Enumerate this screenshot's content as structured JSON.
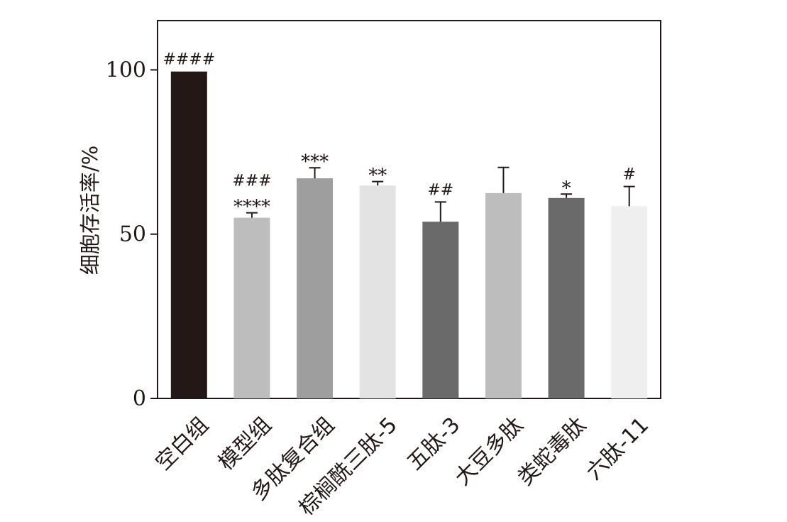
{
  "chart_data": {
    "type": "bar",
    "title": "",
    "xlabel": "",
    "ylabel": "细胞存活率/%",
    "ylim": [
      0,
      115
    ],
    "yticks": [
      0,
      50,
      100
    ],
    "grid": false,
    "legend": "none",
    "categories": [
      "空白组",
      "模型组",
      "多肽复合组",
      "棕榈酰三肽-5",
      "五肽-3",
      "大豆多肽",
      "类蛇毒肽",
      "六肽-11"
    ],
    "values": [
      99.5,
      55,
      67,
      64.8,
      53.8,
      62.5,
      61,
      58.5
    ],
    "errors": [
      0,
      1.5,
      3.2,
      1.2,
      6,
      7.8,
      1.2,
      6
    ],
    "colors": [
      "#231815",
      "#bcbdbc",
      "#9d9e9d",
      "#e3e3e3",
      "#6b6a6a",
      "#bcbdbc",
      "#6b6a6a",
      "#efefef"
    ],
    "significance": [
      [
        "####"
      ],
      [
        "###",
        "****"
      ],
      [
        "***"
      ],
      [
        "**"
      ],
      [
        "##"
      ],
      [],
      [
        "*"
      ],
      [
        "#"
      ]
    ]
  }
}
